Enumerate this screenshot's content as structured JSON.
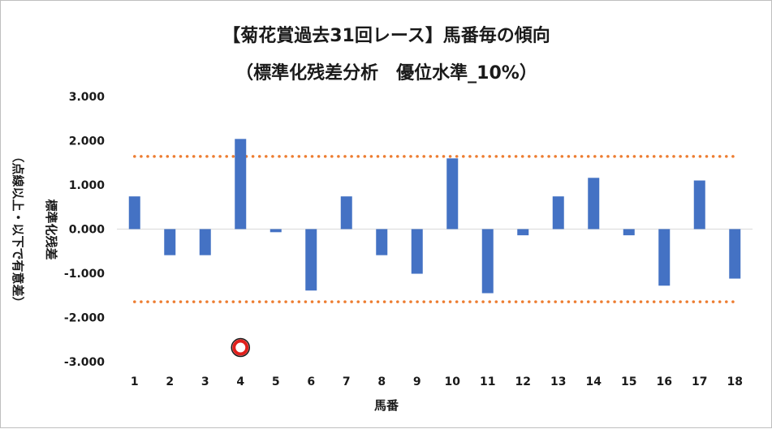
{
  "chart_data": {
    "type": "bar",
    "title": "【菊花賞過去31回レース】馬番毎の傾向",
    "subtitle": "（標準化残差分析　優位水準_10%）",
    "xlabel": "馬番",
    "ylabel": "標準化残差",
    "ylabel_note": "（点線以上・以下で有意差）",
    "categories": [
      "1",
      "2",
      "3",
      "4",
      "5",
      "6",
      "7",
      "8",
      "9",
      "10",
      "11",
      "12",
      "13",
      "14",
      "15",
      "16",
      "17",
      "18"
    ],
    "values": [
      0.74,
      -0.59,
      -0.59,
      2.04,
      -0.07,
      -1.39,
      0.74,
      -0.59,
      -1.01,
      1.6,
      -1.45,
      -0.14,
      0.74,
      1.16,
      -0.14,
      -1.28,
      1.1,
      -1.12
    ],
    "ylim": [
      -3,
      3
    ],
    "yticks": [
      "3.000",
      "2.000",
      "1.000",
      "0.000",
      "-1.000",
      "-2.000",
      "-3.000"
    ],
    "threshold_upper": 1.645,
    "threshold_lower": -1.645,
    "highlight_category": "4",
    "bar_color": "#4472c4",
    "threshold_color": "#ed7d31",
    "marker_color": "#e0201c",
    "grid": false,
    "legend": "none"
  }
}
